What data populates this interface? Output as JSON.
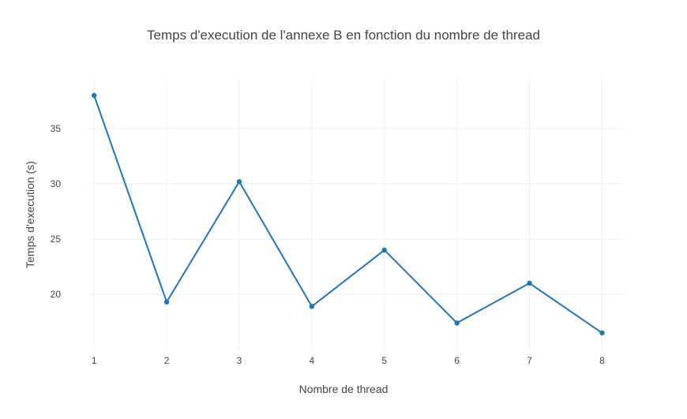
{
  "chart_data": {
    "type": "line",
    "title": "Temps d'execution de l'annexe B en fonction du nombre de thread",
    "xlabel": "Nombre de thread",
    "ylabel": "Temps d'execution (s)",
    "x": [
      1,
      2,
      3,
      4,
      5,
      6,
      7,
      8
    ],
    "series": [
      {
        "values": [
          38.0,
          19.3,
          30.2,
          18.9,
          24.0,
          17.4,
          21.0,
          16.5
        ],
        "color": "#1f77b4"
      }
    ],
    "xlim": [
      0.9,
      8.3
    ],
    "ylim": [
      14.85,
      39.5
    ],
    "xticks": [
      1,
      2,
      3,
      4,
      5,
      6,
      7,
      8
    ],
    "yticks": [
      20,
      25,
      30,
      35
    ],
    "grid": true,
    "legend": "none"
  }
}
